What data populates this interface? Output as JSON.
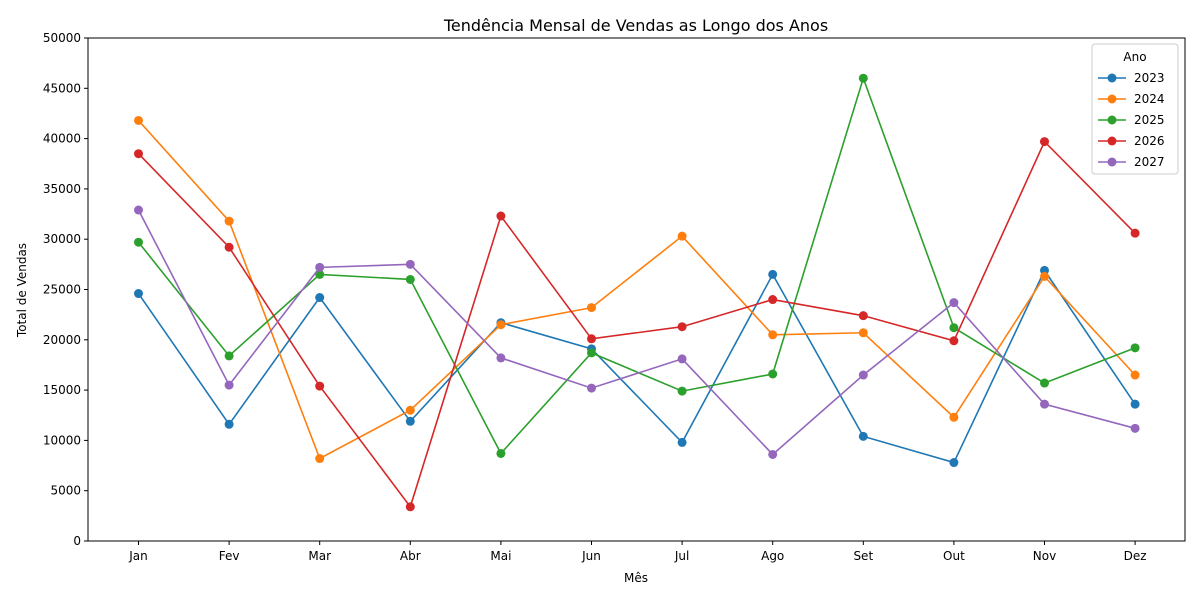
{
  "chart_data": {
    "type": "line",
    "title": "Tendência Mensal de Vendas as Longo dos Anos",
    "xlabel": "Mês",
    "ylabel": "Total de Vendas",
    "categories": [
      "Jan",
      "Fev",
      "Mar",
      "Abr",
      "Mai",
      "Jun",
      "Jul",
      "Ago",
      "Set",
      "Out",
      "Nov",
      "Dez"
    ],
    "ylim": [
      0,
      50000
    ],
    "yticks": [
      0,
      5000,
      10000,
      15000,
      20000,
      25000,
      30000,
      35000,
      40000,
      45000,
      50000
    ],
    "grid": false,
    "legend": {
      "title": "Ano",
      "placement": "top-right"
    },
    "series": [
      {
        "name": "2023",
        "color": "#1f77b4",
        "values": [
          24600,
          11600,
          24200,
          11900,
          21700,
          19100,
          9800,
          26500,
          10400,
          7800,
          26900,
          13600
        ]
      },
      {
        "name": "2024",
        "color": "#ff7f0e",
        "values": [
          41800,
          31800,
          8200,
          13000,
          21500,
          23200,
          30300,
          20500,
          20700,
          12300,
          26300,
          16500
        ]
      },
      {
        "name": "2025",
        "color": "#2ca02c",
        "values": [
          29700,
          18400,
          26500,
          26000,
          8700,
          18700,
          14900,
          16600,
          46000,
          21200,
          15700,
          19200
        ]
      },
      {
        "name": "2026",
        "color": "#d62728",
        "values": [
          38500,
          29200,
          15400,
          3400,
          32300,
          20100,
          21300,
          24000,
          22400,
          19900,
          39700,
          30600
        ]
      },
      {
        "name": "2027",
        "color": "#9467bd",
        "values": [
          32900,
          15500,
          27200,
          27500,
          18200,
          15200,
          18100,
          8600,
          16500,
          23700,
          13600,
          11200
        ]
      }
    ]
  }
}
